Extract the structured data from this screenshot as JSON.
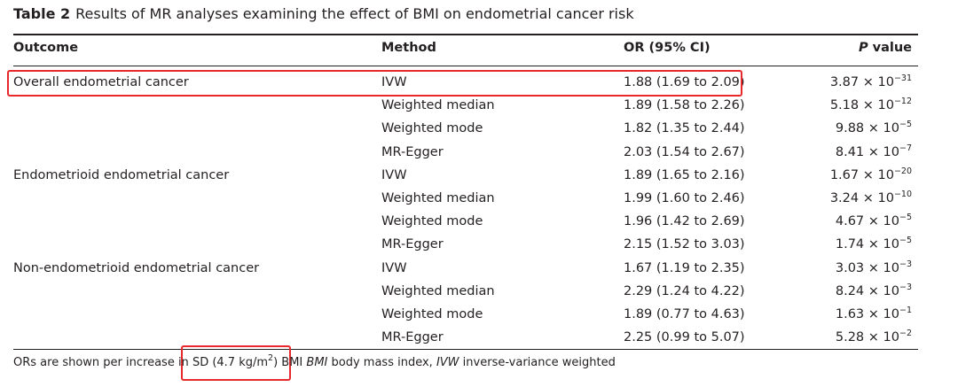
{
  "caption": {
    "label": "Table 2",
    "text": "Results of MR analyses examining the effect of BMI on endometrial cancer risk"
  },
  "headers": {
    "outcome": "Outcome",
    "method": "Method",
    "or_ci": "OR (95% CI)",
    "p_italic": "P",
    "p_rest": " value"
  },
  "rows": [
    {
      "outcome": "Overall endometrial cancer",
      "method": "IVW",
      "or": "1.88 (1.69 to 2.09)",
      "p_base": "3.87 × 10",
      "p_exp": "−31"
    },
    {
      "outcome": "",
      "method": "Weighted median",
      "or": "1.89 (1.58 to 2.26)",
      "p_base": "5.18 × 10",
      "p_exp": "−12"
    },
    {
      "outcome": "",
      "method": "Weighted mode",
      "or": "1.82 (1.35 to 2.44)",
      "p_base": "9.88 × 10",
      "p_exp": "−5"
    },
    {
      "outcome": "",
      "method": "MR-Egger",
      "or": "2.03 (1.54 to 2.67)",
      "p_base": "8.41 × 10",
      "p_exp": "−7"
    },
    {
      "outcome": "Endometrioid endometrial cancer",
      "method": "IVW",
      "or": "1.89 (1.65 to 2.16)",
      "p_base": "1.67 × 10",
      "p_exp": "−20"
    },
    {
      "outcome": "",
      "method": "Weighted median",
      "or": "1.99 (1.60 to 2.46)",
      "p_base": "3.24 × 10",
      "p_exp": "−10"
    },
    {
      "outcome": "",
      "method": "Weighted mode",
      "or": "1.96 (1.42 to 2.69)",
      "p_base": "4.67 × 10",
      "p_exp": "−5"
    },
    {
      "outcome": "",
      "method": "MR-Egger",
      "or": "2.15 (1.52 to 3.03)",
      "p_base": "1.74 × 10",
      "p_exp": "−5"
    },
    {
      "outcome": "Non-endometrioid endometrial cancer",
      "method": "IVW",
      "or": "1.67 (1.19 to 2.35)",
      "p_base": "3.03 × 10",
      "p_exp": "−3"
    },
    {
      "outcome": "",
      "method": "Weighted median",
      "or": "2.29 (1.24 to 4.22)",
      "p_base": "8.24 × 10",
      "p_exp": "−3"
    },
    {
      "outcome": "",
      "method": "Weighted mode",
      "or": "1.89 (0.77 to 4.63)",
      "p_base": "1.63 × 10",
      "p_exp": "−1"
    },
    {
      "outcome": "",
      "method": "MR-Egger",
      "or": "2.25 (0.99 to 5.07)",
      "p_base": "5.28 × 10",
      "p_exp": "−2"
    }
  ],
  "footnote": {
    "part1": "ORs are shown per increase in ",
    "sd_text": "SD (4.7 kg/m",
    "sd_sup": "2",
    "sd_end": ") BMI",
    "part2_space": " ",
    "bmi_abbr": "BMI",
    "bmi_def": " body mass index, ",
    "ivw_abbr": "IVW",
    "ivw_def": " inverse-variance weighted"
  },
  "colors": {
    "text": "#231f20",
    "highlight_box": "#e8292b"
  }
}
